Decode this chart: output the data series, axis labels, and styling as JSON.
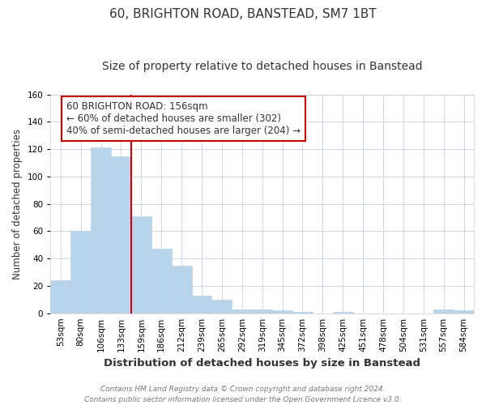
{
  "title": "60, BRIGHTON ROAD, BANSTEAD, SM7 1BT",
  "subtitle": "Size of property relative to detached houses in Banstead",
  "xlabel": "Distribution of detached houses by size in Banstead",
  "ylabel": "Number of detached properties",
  "bar_labels": [
    "53sqm",
    "80sqm",
    "106sqm",
    "133sqm",
    "159sqm",
    "186sqm",
    "212sqm",
    "239sqm",
    "265sqm",
    "292sqm",
    "319sqm",
    "345sqm",
    "372sqm",
    "398sqm",
    "425sqm",
    "451sqm",
    "478sqm",
    "504sqm",
    "531sqm",
    "557sqm",
    "584sqm"
  ],
  "bar_values": [
    24,
    60,
    121,
    115,
    71,
    47,
    35,
    13,
    10,
    3,
    3,
    2,
    1,
    0,
    1,
    0,
    0,
    0,
    0,
    3,
    2
  ],
  "bar_color": "#b8d4ea",
  "bar_edge_color": "#b8d4ea",
  "highlight_line_index": 4,
  "highlight_line_color": "#cc0000",
  "annotation_text_line1": "60 BRIGHTON ROAD: 156sqm",
  "annotation_text_line2": "← 60% of detached houses are smaller (302)",
  "annotation_text_line3": "40% of semi-detached houses are larger (204) →",
  "annotation_box_color": "#ffffff",
  "annotation_box_edge_color": "#cc0000",
  "ylim": [
    0,
    160
  ],
  "yticks": [
    0,
    20,
    40,
    60,
    80,
    100,
    120,
    140,
    160
  ],
  "footer_line1": "Contains HM Land Registry data © Crown copyright and database right 2024.",
  "footer_line2": "Contains public sector information licensed under the Open Government Licence v3.0.",
  "background_color": "#ffffff",
  "grid_color": "#ccd8e8",
  "title_fontsize": 11,
  "subtitle_fontsize": 10,
  "xlabel_fontsize": 9.5,
  "ylabel_fontsize": 8.5,
  "tick_fontsize": 7.5,
  "footer_fontsize": 6.5,
  "annotation_fontsize": 8.5
}
